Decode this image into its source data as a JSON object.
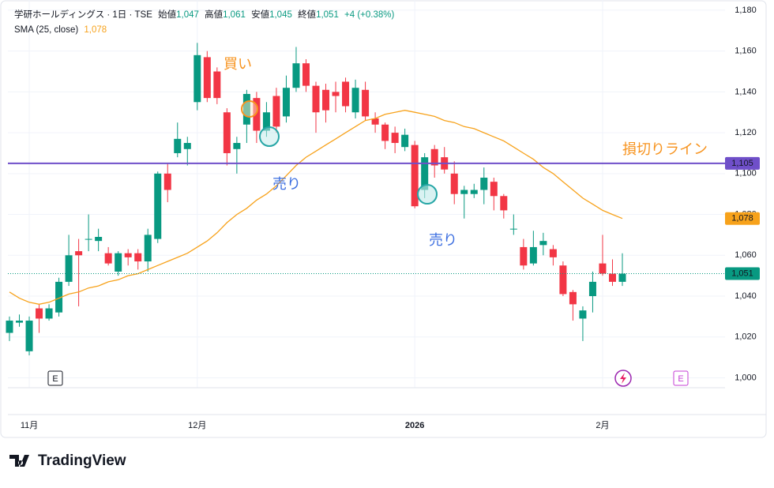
{
  "chart_data": {
    "type": "candlestick",
    "header": {
      "symbol": "学研ホールディングス · 1日 · TSE",
      "open_label": "始値",
      "open": "1,047",
      "high_label": "高値",
      "high": "1,061",
      "low_label": "安値",
      "low": "1,045",
      "close_label": "終値",
      "close": "1,051",
      "change": "+4 (+0.38%)"
    },
    "categories": [
      null,
      null,
      "11月",
      null,
      null,
      null,
      null,
      null,
      null,
      null,
      null,
      null,
      null,
      null,
      null,
      null,
      null,
      null,
      null,
      "12月",
      null,
      null,
      null,
      null,
      null,
      null,
      null,
      null,
      null,
      null,
      null,
      null,
      null,
      null,
      null,
      null,
      null,
      null,
      null,
      null,
      null,
      "2026",
      null,
      null,
      null,
      null,
      null,
      null,
      null,
      null,
      null,
      null,
      null,
      null,
      null,
      null,
      null,
      null,
      null,
      null,
      "2月",
      null,
      null
    ],
    "open": [
      1022,
      1027,
      1013,
      1034,
      1029,
      1032,
      1047,
      1062,
      1068,
      1067,
      1061,
      1052,
      1061,
      1061,
      1057,
      1068,
      1100,
      1110,
      1112,
      1135,
      1157,
      1150,
      1130,
      1112,
      1124,
      1137,
      1121,
      1138,
      1128,
      1142,
      1154,
      1143,
      1141,
      1140,
      1145,
      1130,
      1141,
      1127,
      1124,
      1120,
      1113,
      1114,
      1092,
      1112,
      1108,
      1100,
      1090,
      1090,
      1092,
      1096,
      1089,
      1073,
      1064,
      1056,
      1065,
      1063,
      1055,
      1042,
      1029,
      1040,
      1056,
      1051,
      1047
    ],
    "high": [
      1030,
      1031,
      1030,
      1036,
      1036,
      1049,
      1070,
      1068,
      1080,
      1073,
      1064,
      1062,
      1063,
      1063,
      1073,
      1101,
      1105,
      1125,
      1118,
      1164,
      1160,
      1152,
      1132,
      1118,
      1141,
      1140,
      1135,
      1142,
      1148,
      1162,
      1156,
      1145,
      1144,
      1145,
      1147,
      1146,
      1145,
      1130,
      1125,
      1123,
      1122,
      1116,
      1110,
      1114,
      1113,
      1106,
      1094,
      1095,
      1103,
      1098,
      1090,
      1080,
      1068,
      1072,
      1071,
      1065,
      1057,
      1043,
      1035,
      1052,
      1070,
      1058,
      1061
    ],
    "low": [
      1018,
      1025,
      1011,
      1022,
      1028,
      1030,
      1045,
      1035,
      1062,
      1062,
      1055,
      1050,
      1055,
      1053,
      1052,
      1066,
      1086,
      1108,
      1104,
      1131,
      1135,
      1134,
      1104,
      1100,
      1115,
      1115,
      1118,
      1120,
      1125,
      1140,
      1140,
      1120,
      1125,
      1130,
      1130,
      1127,
      1126,
      1120,
      1112,
      1110,
      1111,
      1083,
      1088,
      1098,
      1100,
      1085,
      1078,
      1088,
      1085,
      1082,
      1078,
      1070,
      1053,
      1055,
      1060,
      1055,
      1040,
      1028,
      1018,
      1032,
      1050,
      1045,
      1045
    ],
    "close": [
      1028,
      1028,
      1028,
      1029,
      1034,
      1047,
      1060,
      1060,
      1068,
      1069,
      1056,
      1061,
      1059,
      1057,
      1070,
      1100,
      1092,
      1117,
      1115,
      1158,
      1137,
      1137,
      1110,
      1115,
      1139,
      1121,
      1130,
      1123,
      1142,
      1154,
      1143,
      1130,
      1131,
      1138,
      1133,
      1142,
      1128,
      1124,
      1116,
      1115,
      1119,
      1084,
      1108,
      1104,
      1102,
      1090,
      1092,
      1092,
      1098,
      1089,
      1082,
      1073,
      1055,
      1064,
      1067,
      1059,
      1041,
      1036,
      1033,
      1047,
      1051,
      1047,
      1051
    ],
    "up_color": "#089981",
    "down_color": "#f23645",
    "sma": {
      "name": "SMA (25, close)",
      "color": "#f7a21b",
      "value_label": "1,078",
      "values": [
        1042,
        1039,
        1037,
        1036,
        1037,
        1039,
        1041,
        1042,
        1044,
        1045,
        1047,
        1048,
        1050,
        1051,
        1053,
        1055,
        1057,
        1059,
        1061,
        1064,
        1067,
        1071,
        1076,
        1080,
        1083,
        1087,
        1090,
        1094,
        1099,
        1104,
        1108,
        1111,
        1114,
        1117,
        1120,
        1123,
        1126,
        1127,
        1129,
        1130,
        1131,
        1130,
        1129,
        1128,
        1126,
        1125,
        1123,
        1122,
        1120,
        1118,
        1116,
        1113,
        1110,
        1107,
        1103,
        1100,
        1096,
        1092,
        1088,
        1085,
        1082,
        1080,
        1078
      ]
    },
    "hline": {
      "value": 1105,
      "label": "1,105",
      "color": "#6f4fc9"
    },
    "last_price": {
      "value": 1051,
      "label": "1,051"
    },
    "ylim": [
      982,
      1185
    ],
    "yticks": [
      {
        "value": 1000,
        "label": "1,000"
      },
      {
        "value": 1020,
        "label": "1,020"
      },
      {
        "value": 1040,
        "label": "1,040"
      },
      {
        "value": 1060,
        "label": "1,060"
      },
      {
        "value": 1080,
        "label": "1,080"
      },
      {
        "value": 1100,
        "label": "1,100"
      },
      {
        "value": 1120,
        "label": "1,120"
      },
      {
        "value": 1140,
        "label": "1,140"
      },
      {
        "value": 1160,
        "label": "1,160"
      },
      {
        "value": 1180,
        "label": "1,180"
      }
    ],
    "grid": true,
    "annotations": [
      {
        "text": "買い",
        "color": "#f7931e"
      },
      {
        "text": "売り",
        "color": "#3d6fe0"
      },
      {
        "text": "売り",
        "color": "#3d6fe0"
      },
      {
        "text": "損切りライン",
        "color": "#f7931e"
      }
    ],
    "events": [
      "E",
      "E"
    ],
    "logo": "TradingView"
  }
}
